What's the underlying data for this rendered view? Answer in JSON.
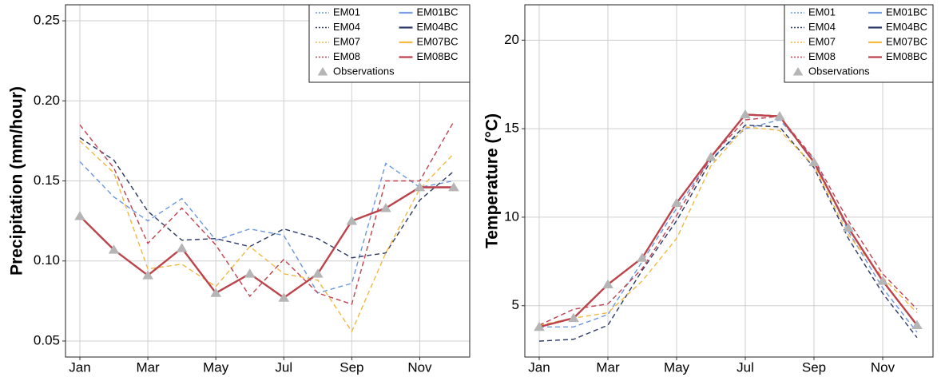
{
  "chart_data": [
    {
      "type": "line",
      "y_label": "Precipitation (mm/hour)",
      "categories": [
        "Jan",
        null,
        "Mar",
        null,
        "May",
        null,
        "Jul",
        null,
        "Sep",
        null,
        "Nov",
        null
      ],
      "ylim": [
        0.04,
        0.26
      ],
      "yticks": [
        0.05,
        {
          "value": 0.1,
          "label": "0.10"
        },
        0.15,
        {
          "value": 0.2,
          "label": "0.20"
        },
        0.25
      ],
      "grid": true,
      "legend": "top-right",
      "series": [
        {
          "name": "EM01",
          "color": "#6a96de",
          "style": "dashed",
          "values": [
            0.162,
            0.14,
            0.125,
            0.139,
            0.113,
            0.12,
            0.116,
            0.08,
            0.086,
            0.161,
            0.146,
            0.15
          ]
        },
        {
          "name": "EM04",
          "color": "#2b3a67",
          "style": "dashed",
          "values": [
            0.177,
            0.163,
            0.131,
            0.113,
            0.114,
            0.109,
            0.12,
            0.114,
            0.102,
            0.105,
            0.138,
            0.156
          ]
        },
        {
          "name": "EM07",
          "color": "#f0b840",
          "style": "dashed",
          "values": [
            0.175,
            0.155,
            0.095,
            0.098,
            0.084,
            0.109,
            0.092,
            0.088,
            0.056,
            0.105,
            0.145,
            0.167
          ]
        },
        {
          "name": "EM08",
          "color": "#c0404e",
          "style": "dashed",
          "values": [
            0.185,
            0.158,
            0.111,
            0.133,
            0.11,
            0.078,
            0.101,
            0.08,
            0.073,
            0.15,
            0.15,
            0.187
          ]
        },
        {
          "name": "EM01BC",
          "color": "#7a9fe6",
          "style": "solid",
          "values": [
            0.128,
            0.107,
            0.091,
            0.108,
            0.08,
            0.092,
            0.077,
            0.092,
            0.125,
            0.133,
            0.146,
            0.146
          ]
        },
        {
          "name": "EM04BC",
          "color": "#2e3a6b",
          "style": "solid",
          "values": [
            0.128,
            0.107,
            0.091,
            0.108,
            0.08,
            0.092,
            0.077,
            0.092,
            0.125,
            0.133,
            0.146,
            0.146
          ]
        },
        {
          "name": "EM07BC",
          "color": "#f5bb40",
          "style": "solid",
          "values": [
            0.128,
            0.107,
            0.091,
            0.108,
            0.08,
            0.092,
            0.077,
            0.092,
            0.125,
            0.133,
            0.146,
            0.146
          ]
        },
        {
          "name": "EM08BC",
          "color": "#c0414e",
          "style": "solid",
          "values": [
            0.128,
            0.107,
            0.091,
            0.108,
            0.08,
            0.092,
            0.077,
            0.092,
            0.125,
            0.133,
            0.146,
            0.146
          ]
        },
        {
          "name": "Observations",
          "color": "#b5b5b5",
          "style": "markers",
          "values": [
            0.128,
            0.107,
            0.091,
            0.108,
            0.08,
            0.092,
            0.077,
            0.092,
            0.125,
            0.133,
            0.146,
            0.146
          ]
        }
      ]
    },
    {
      "type": "line",
      "y_label": "Temperature (°C)",
      "categories": [
        "Jan",
        null,
        "Mar",
        null,
        "May",
        null,
        "Jul",
        null,
        "Sep",
        null,
        "Nov",
        null
      ],
      "ylim": [
        2.1,
        22
      ],
      "yticks": [
        5,
        10,
        15,
        20
      ],
      "grid": true,
      "legend": "top-right",
      "series": [
        {
          "name": "EM01",
          "color": "#6a96de",
          "style": "dashed",
          "values": [
            3.8,
            3.8,
            4.5,
            7.5,
            10.5,
            13.3,
            15.0,
            15.5,
            13.3,
            9.2,
            6.0,
            3.5
          ]
        },
        {
          "name": "EM04",
          "color": "#2b3a67",
          "style": "dashed",
          "values": [
            3.0,
            3.1,
            3.9,
            7.0,
            9.8,
            13.2,
            15.2,
            15.1,
            12.8,
            8.8,
            5.7,
            3.2
          ]
        },
        {
          "name": "EM07",
          "color": "#f0b840",
          "style": "dashed",
          "values": [
            3.9,
            4.3,
            4.6,
            6.4,
            8.8,
            12.9,
            15.1,
            14.9,
            12.9,
            9.0,
            6.6,
            4.6
          ]
        },
        {
          "name": "EM08",
          "color": "#c0404e",
          "style": "dashed",
          "values": [
            3.9,
            4.8,
            5.1,
            7.1,
            10.1,
            13.4,
            15.5,
            15.7,
            13.3,
            9.8,
            6.8,
            4.8
          ]
        },
        {
          "name": "EM01BC",
          "color": "#7a9fe6",
          "style": "solid",
          "values": [
            3.8,
            4.3,
            6.2,
            7.7,
            10.8,
            13.4,
            15.8,
            15.7,
            13.1,
            9.4,
            6.4,
            3.9
          ]
        },
        {
          "name": "EM04BC",
          "color": "#2e3a6b",
          "style": "solid",
          "values": [
            3.8,
            4.3,
            6.2,
            7.7,
            10.8,
            13.4,
            15.8,
            15.7,
            13.1,
            9.4,
            6.4,
            3.9
          ]
        },
        {
          "name": "EM07BC",
          "color": "#f5bb40",
          "style": "solid",
          "values": [
            3.8,
            4.3,
            6.2,
            7.7,
            10.8,
            13.4,
            15.8,
            15.7,
            13.1,
            9.4,
            6.4,
            3.9
          ]
        },
        {
          "name": "EM08BC",
          "color": "#c0414e",
          "style": "solid",
          "values": [
            3.8,
            4.3,
            6.2,
            7.7,
            10.8,
            13.4,
            15.8,
            15.7,
            13.1,
            9.4,
            6.4,
            3.9
          ]
        },
        {
          "name": "Observations",
          "color": "#b5b5b5",
          "style": "markers",
          "values": [
            3.8,
            4.3,
            6.2,
            7.7,
            10.8,
            13.4,
            15.8,
            15.7,
            13.1,
            9.4,
            6.4,
            3.9
          ]
        }
      ]
    }
  ]
}
